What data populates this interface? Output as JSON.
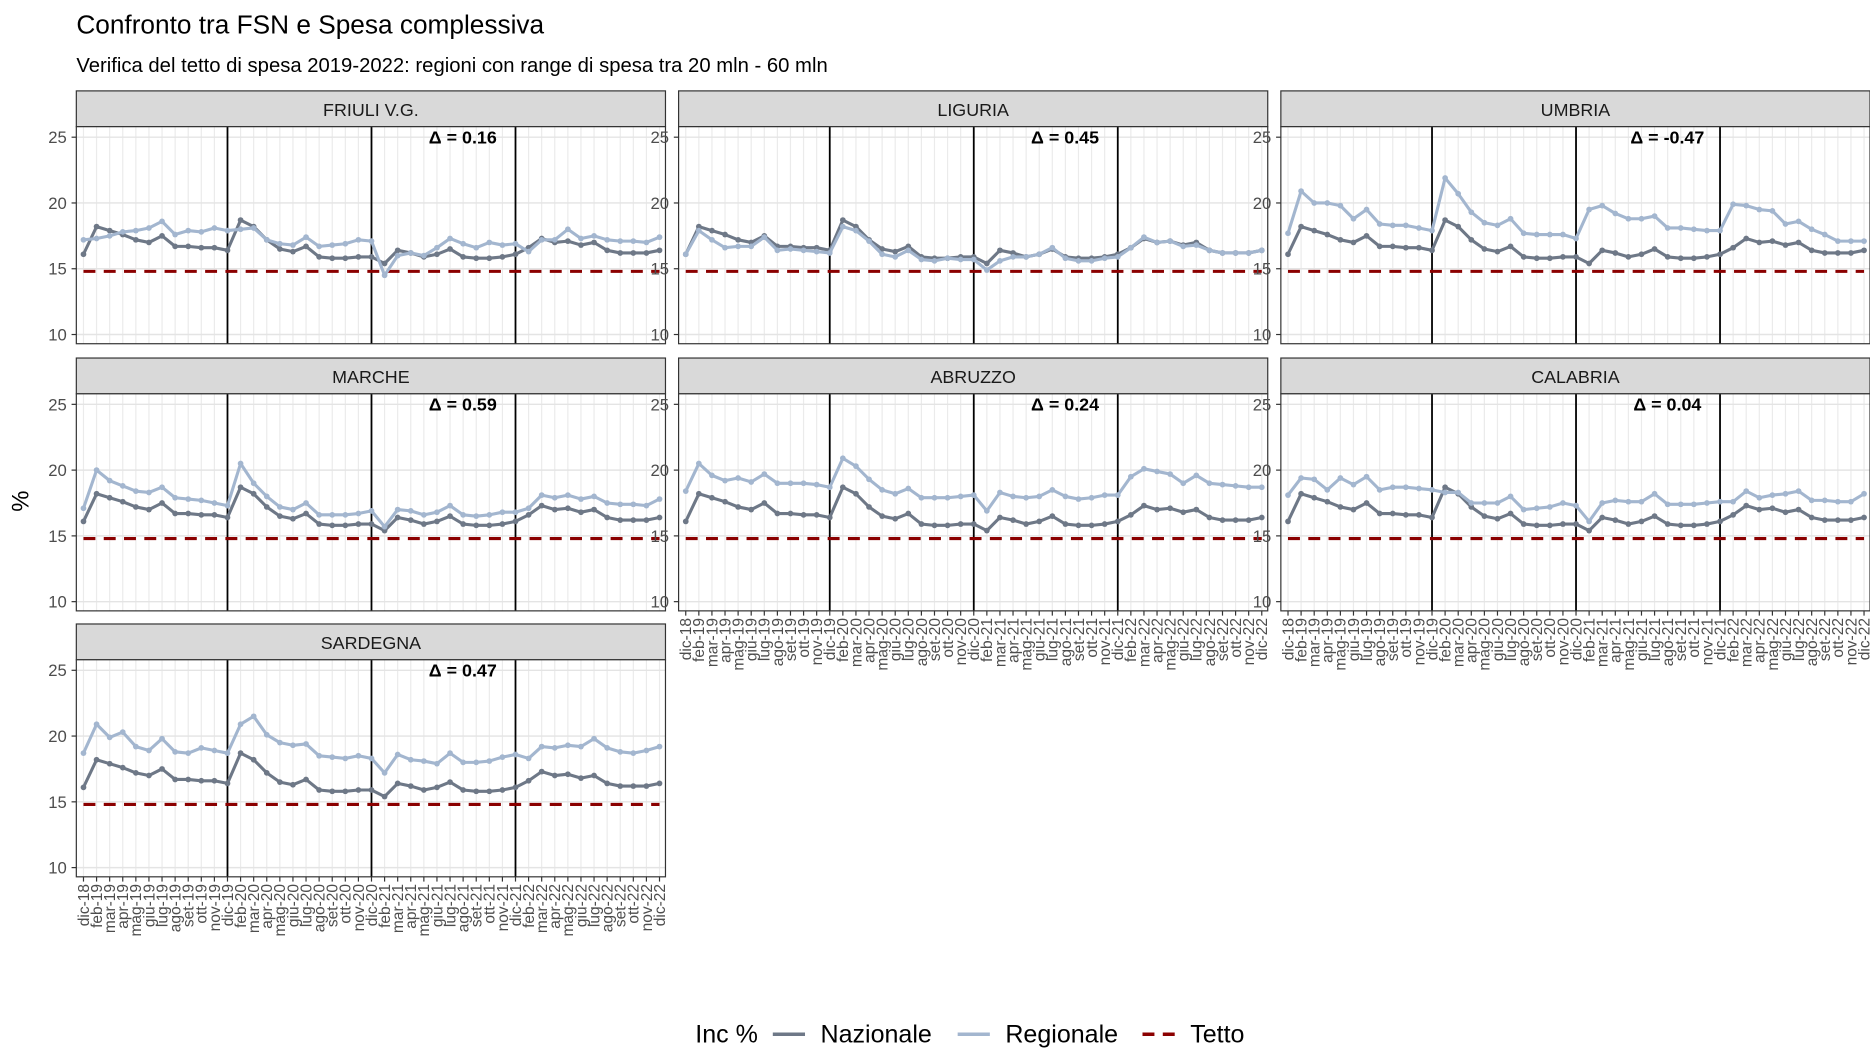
{
  "chart_data": {
    "type": "line",
    "title": "Confronto tra FSN e Spesa complessiva",
    "subtitle": "Verifica del tetto di spesa 2019-2022: regioni con range  di spesa tra 20 mln - 60 mln",
    "y_label": "%",
    "legend_title": "Inc %",
    "categories": [
      "dic-18",
      "feb-19",
      "mar-19",
      "apr-19",
      "mag-19",
      "giu-19",
      "lug-19",
      "ago-19",
      "set-19",
      "ott-19",
      "nov-19",
      "dic-19",
      "feb-20",
      "mar-20",
      "apr-20",
      "mag-20",
      "giu-20",
      "lug-20",
      "ago-20",
      "set-20",
      "ott-20",
      "nov-20",
      "dic-20",
      "feb-21",
      "mar-21",
      "apr-21",
      "mag-21",
      "giu-21",
      "lug-21",
      "ago-21",
      "set-21",
      "ott-21",
      "nov-21",
      "dic-21",
      "feb-22",
      "mar-22",
      "apr-22",
      "mag-22",
      "giu-22",
      "lug-22",
      "ago-22",
      "set-22",
      "ott-22",
      "nov-22",
      "dic-22"
    ],
    "ylim": [
      9.3,
      25.8
    ],
    "yticks": [
      10,
      15,
      20,
      25
    ],
    "grid": true,
    "vlines": [
      "dic-19",
      "dic-20",
      "dic-21"
    ],
    "series": [
      {
        "name": "Nazionale",
        "color": "#6e7887",
        "values": [
          16.1,
          18.2,
          17.9,
          17.6,
          17.2,
          17.0,
          17.5,
          16.7,
          16.7,
          16.6,
          16.6,
          16.4,
          18.7,
          18.2,
          17.2,
          16.5,
          16.3,
          16.7,
          15.9,
          15.8,
          15.8,
          15.9,
          15.9,
          15.4,
          16.4,
          16.2,
          15.9,
          16.1,
          16.5,
          15.9,
          15.8,
          15.8,
          15.9,
          16.1,
          16.6,
          17.3,
          17.0,
          17.1,
          16.8,
          17.0,
          16.4,
          16.2,
          16.2,
          16.2,
          16.4
        ]
      },
      {
        "name": "Regionale",
        "color": "#a3b6cf"
      },
      {
        "name": "Tetto",
        "color": "#8b0000",
        "value": 14.8,
        "dashed": true
      }
    ],
    "panels": [
      {
        "title": "FRIULI V.G.",
        "annotation": "Δ = 0.16",
        "values": [
          17.2,
          17.3,
          17.5,
          17.8,
          17.9,
          18.1,
          18.6,
          17.6,
          17.9,
          17.8,
          18.1,
          17.9,
          18.0,
          18.1,
          17.2,
          16.9,
          16.8,
          17.4,
          16.7,
          16.8,
          16.9,
          17.2,
          17.1,
          14.5,
          16.0,
          16.2,
          16.0,
          16.6,
          17.3,
          16.9,
          16.6,
          17.0,
          16.8,
          16.9,
          16.3,
          17.2,
          17.2,
          18.0,
          17.3,
          17.5,
          17.2,
          17.1,
          17.1,
          17.0,
          17.4
        ]
      },
      {
        "title": "LIGURIA",
        "annotation": "Δ = 0.45",
        "values": [
          16.1,
          17.9,
          17.2,
          16.6,
          16.7,
          16.7,
          17.4,
          16.4,
          16.5,
          16.4,
          16.3,
          16.2,
          18.2,
          17.9,
          17.1,
          16.1,
          15.9,
          16.4,
          15.7,
          15.6,
          15.8,
          15.7,
          15.7,
          14.9,
          15.6,
          15.9,
          15.9,
          16.1,
          16.6,
          15.8,
          15.6,
          15.6,
          15.8,
          15.9,
          16.6,
          17.4,
          17.0,
          17.1,
          16.7,
          16.8,
          16.4,
          16.2,
          16.2,
          16.2,
          16.4
        ]
      },
      {
        "title": "UMBRIA",
        "annotation": "Δ = -0.47",
        "values": [
          17.7,
          20.9,
          20.0,
          20.0,
          19.8,
          18.8,
          19.5,
          18.4,
          18.3,
          18.3,
          18.1,
          17.9,
          21.9,
          20.7,
          19.3,
          18.5,
          18.3,
          18.8,
          17.7,
          17.6,
          17.6,
          17.6,
          17.3,
          19.5,
          19.8,
          19.2,
          18.8,
          18.8,
          19.0,
          18.1,
          18.1,
          18.0,
          17.9,
          17.9,
          19.9,
          19.8,
          19.5,
          19.4,
          18.4,
          18.6,
          18.0,
          17.6,
          17.1,
          17.1,
          17.1
        ]
      },
      {
        "title": "MARCHE",
        "annotation": "Δ = 0.59",
        "values": [
          17.1,
          20.0,
          19.2,
          18.8,
          18.4,
          18.3,
          18.7,
          17.9,
          17.8,
          17.7,
          17.5,
          17.3,
          20.5,
          19.0,
          18.0,
          17.2,
          17.0,
          17.5,
          16.6,
          16.6,
          16.6,
          16.7,
          16.9,
          15.7,
          17.0,
          16.9,
          16.6,
          16.8,
          17.3,
          16.6,
          16.5,
          16.6,
          16.8,
          16.8,
          17.1,
          18.1,
          17.9,
          18.1,
          17.8,
          18.0,
          17.5,
          17.4,
          17.4,
          17.3,
          17.8
        ]
      },
      {
        "title": "ABRUZZO",
        "annotation": "Δ = 0.24",
        "values": [
          18.4,
          20.5,
          19.6,
          19.2,
          19.4,
          19.1,
          19.7,
          19.0,
          19.0,
          19.0,
          18.9,
          18.7,
          20.9,
          20.3,
          19.3,
          18.5,
          18.2,
          18.6,
          17.9,
          17.9,
          17.9,
          18.0,
          18.1,
          16.9,
          18.3,
          18.0,
          17.9,
          18.0,
          18.5,
          18.0,
          17.8,
          17.9,
          18.1,
          18.1,
          19.5,
          20.1,
          19.9,
          19.7,
          19.0,
          19.6,
          19.0,
          18.9,
          18.8,
          18.7,
          18.7
        ]
      },
      {
        "title": "CALABRIA",
        "annotation": "Δ = 0.04",
        "values": [
          18.1,
          19.4,
          19.3,
          18.5,
          19.4,
          18.9,
          19.5,
          18.5,
          18.7,
          18.7,
          18.6,
          18.5,
          18.3,
          18.3,
          17.5,
          17.5,
          17.5,
          18.0,
          17.0,
          17.1,
          17.2,
          17.5,
          17.3,
          16.1,
          17.5,
          17.7,
          17.6,
          17.6,
          18.2,
          17.4,
          17.4,
          17.4,
          17.5,
          17.6,
          17.6,
          18.4,
          17.9,
          18.1,
          18.2,
          18.4,
          17.7,
          17.7,
          17.6,
          17.6,
          18.2
        ]
      },
      {
        "title": "SARDEGNA",
        "annotation": "Δ = 0.47",
        "values": [
          18.7,
          20.9,
          19.9,
          20.3,
          19.2,
          18.9,
          19.8,
          18.8,
          18.7,
          19.1,
          18.9,
          18.7,
          20.9,
          21.5,
          20.1,
          19.5,
          19.3,
          19.4,
          18.5,
          18.4,
          18.3,
          18.5,
          18.3,
          17.2,
          18.6,
          18.2,
          18.1,
          17.9,
          18.7,
          18.0,
          18.0,
          18.1,
          18.4,
          18.6,
          18.3,
          19.2,
          19.1,
          19.3,
          19.2,
          19.8,
          19.1,
          18.8,
          18.7,
          18.9,
          19.2
        ]
      }
    ]
  }
}
